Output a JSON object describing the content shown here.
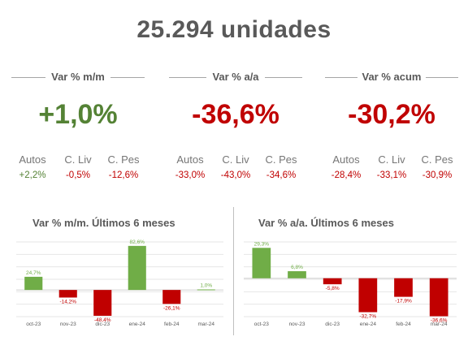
{
  "header": {
    "title": "25.294  unidades"
  },
  "colors": {
    "positive": "#548235",
    "negative": "#c00000",
    "bar_positive": "#70ad47",
    "bar_negative": "#c00000"
  },
  "kpis": [
    {
      "label": "Var % m/m",
      "value": "+1,0%",
      "sign": "positive",
      "subs": [
        {
          "name": "Autos",
          "value": "+2,2%",
          "sign": "positive"
        },
        {
          "name": "C. Liv",
          "value": "-0,5%",
          "sign": "negative"
        },
        {
          "name": "C. Pes",
          "value": "-12,6%",
          "sign": "negative"
        }
      ]
    },
    {
      "label": "Var % a/a",
      "value": "-36,6%",
      "sign": "negative",
      "subs": [
        {
          "name": "Autos",
          "value": "-33,0%",
          "sign": "negative"
        },
        {
          "name": "C. Liv",
          "value": "-43,0%",
          "sign": "negative"
        },
        {
          "name": "C. Pes",
          "value": "-34,6%",
          "sign": "negative"
        }
      ]
    },
    {
      "label": "Var % acum",
      "value": "-30,2%",
      "sign": "negative",
      "subs": [
        {
          "name": "Autos",
          "value": "-28,4%",
          "sign": "negative"
        },
        {
          "name": "C. Liv",
          "value": "-33,1%",
          "sign": "negative"
        },
        {
          "name": "C. Pes",
          "value": "-30,9%",
          "sign": "negative"
        }
      ]
    }
  ],
  "chart_data": [
    {
      "type": "bar",
      "title": "Var % m/m. Últimos 6 meses",
      "categories": [
        "oct-23",
        "nov-23",
        "dic-23",
        "ene-24",
        "feb-24",
        "mar-24"
      ],
      "values": [
        24.7,
        -14.2,
        -48.4,
        82.6,
        -26.1,
        1.0
      ],
      "labels": [
        "24,7%",
        "-14,2%",
        "-48,4%",
        "82,6%",
        "-26,1%",
        "1,0%"
      ],
      "ylim": [
        -50,
        90
      ],
      "grid": true
    },
    {
      "type": "bar",
      "title": "Var % a/a. Últimos 6 meses",
      "categories": [
        "oct-23",
        "nov-23",
        "dic-23",
        "ene-24",
        "feb-24",
        "mar-24"
      ],
      "values": [
        29.3,
        6.8,
        -5.8,
        -32.7,
        -17.9,
        -36.6
      ],
      "labels": [
        "29,3%",
        "6,8%",
        "-5,8%",
        "-32,7%",
        "-17,9%",
        "-36,6%"
      ],
      "ylim": [
        -37,
        35
      ],
      "grid": true
    }
  ]
}
